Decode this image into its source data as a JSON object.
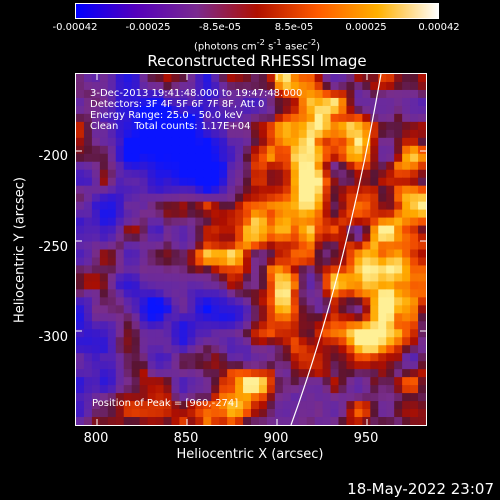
{
  "colorbar": {
    "ticks": [
      "-0.00042",
      "-0.00025",
      "-8.5e-05",
      "8.5e-05",
      "0.00025",
      "0.00042"
    ],
    "units_prefix": "(photons cm",
    "units_exp1": "-2",
    "units_mid": " s",
    "units_exp2": "-1",
    "units_suffix": " asec",
    "units_exp3": "-2",
    "units_close": ")",
    "colors": [
      "#0000ff",
      "#5500bb",
      "#7a2a90",
      "#b01000",
      "#ff5a00",
      "#ffb000",
      "#ffffff"
    ]
  },
  "title": "Reconstructed RHESSI Image",
  "info": {
    "line1": "3-Dec-2013 19:41:48.000 to 19:47:48.000",
    "line2": "Detectors: 3F 4F 5F 6F 7F 8F, Att 0",
    "line3": "Energy Range: 25.0 - 50.0 keV",
    "line4": "Clean     Total counts: 1.17E+04",
    "peak": "Position of Peak = [960,-274]"
  },
  "axes": {
    "xlabel": "Heliocentric X (arcsec)",
    "ylabel": "Heliocentric Y (arcsec)",
    "xticks": [
      "800",
      "850",
      "900",
      "950"
    ],
    "yticks": [
      "-200",
      "-250",
      "-300"
    ],
    "xlim": [
      790,
      985
    ],
    "ylim": [
      -350,
      -155
    ]
  },
  "timestamp": "18-May-2022 23:07"
}
